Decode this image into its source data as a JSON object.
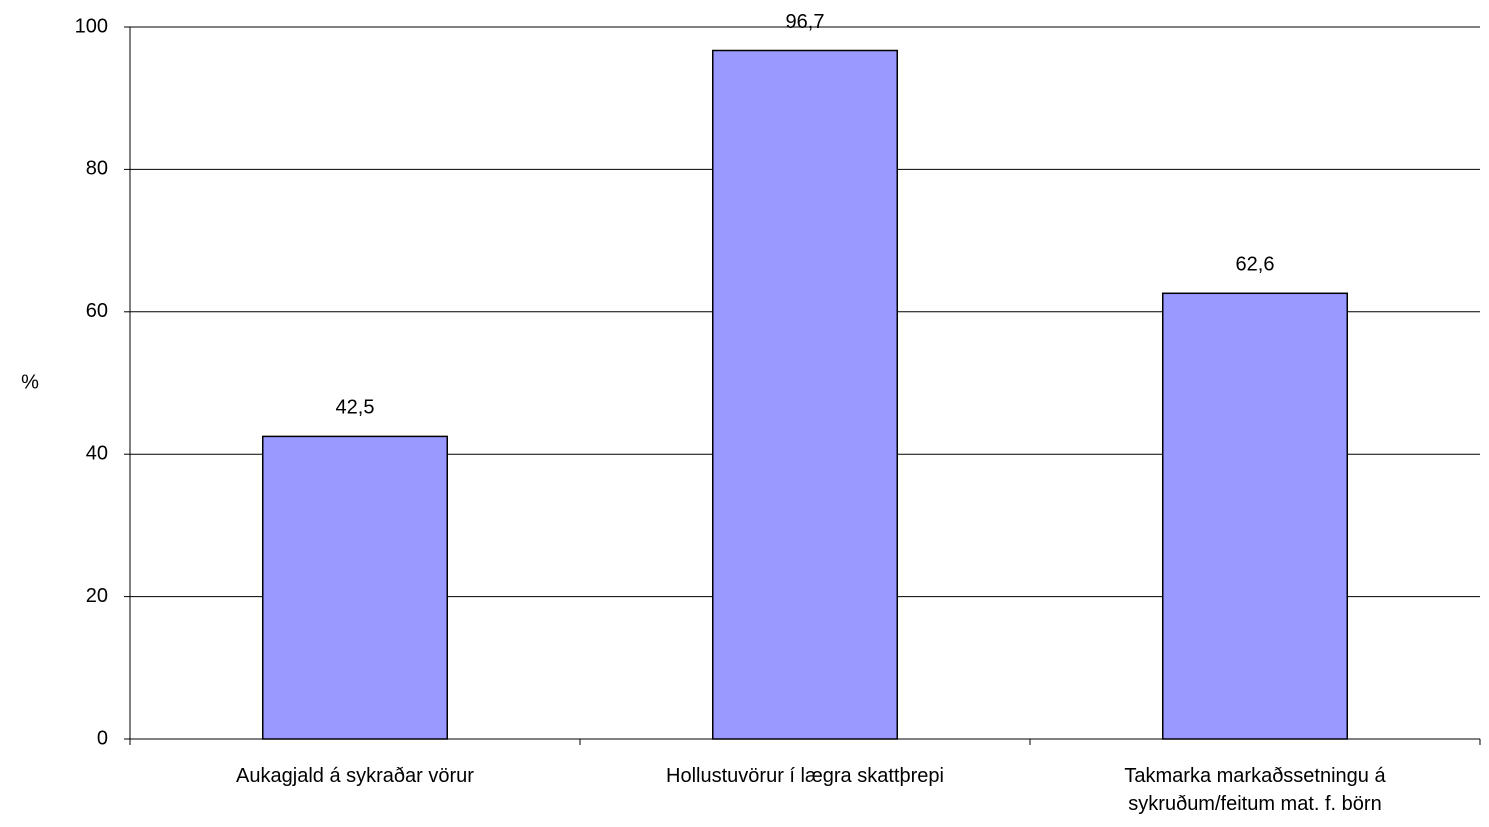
{
  "chart_data": {
    "type": "bar",
    "y_label": "%",
    "categories": [
      "Aukagjald á sykraðar vörur",
      "Hollustuvörur í lægra skattþrepi",
      "Takmarka markaðssetningu á sykruðum/feitum mat. f. börn"
    ],
    "values": [
      42.5,
      96.7,
      62.6
    ],
    "value_labels": [
      "42,5",
      "96,7",
      "62,6"
    ],
    "color": "#9999ff",
    "ylim": [
      0,
      100
    ],
    "yticks": [
      0,
      20,
      40,
      60,
      80,
      100
    ],
    "grid": true
  }
}
